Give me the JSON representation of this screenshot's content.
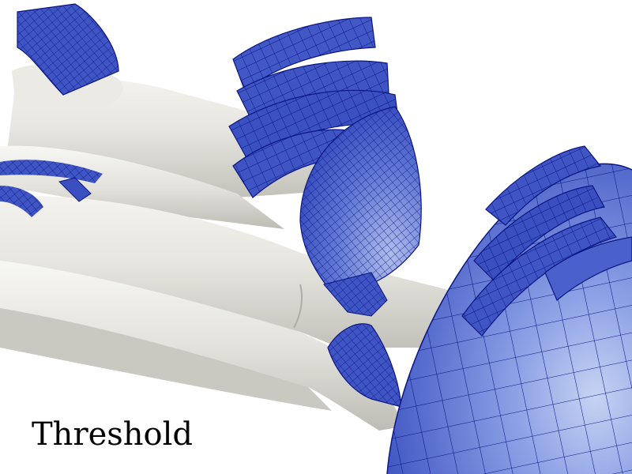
{
  "overlay": {
    "text": "Threshold"
  },
  "colors": {
    "background": "#ffffff",
    "surface": "#e4e3dd",
    "surface_shade": "#b8b7b0",
    "surface_highlight": "#f6f6f3",
    "mesh_fill": "#3f55c4",
    "mesh_fill_light": "#6f86df",
    "mesh_edge": "#0b1584"
  }
}
